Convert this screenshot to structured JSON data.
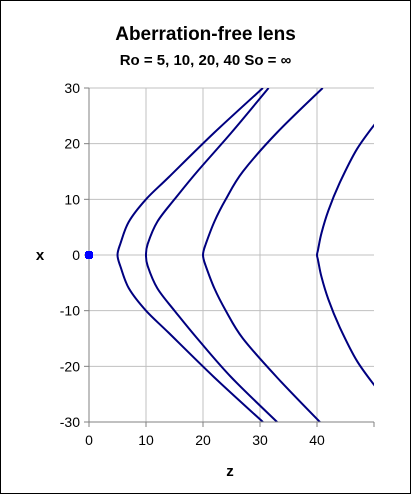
{
  "chart_data": {
    "type": "line",
    "title": "Aberration-free lens",
    "subtitle": "Ro = 5, 10, 20, 40      So = ∞",
    "xlabel": "z",
    "ylabel": "x",
    "xlim": [
      0,
      50
    ],
    "ylim": [
      -30,
      30
    ],
    "x_ticks": [
      0,
      10,
      20,
      30,
      40
    ],
    "y_ticks": [
      30,
      20,
      10,
      0,
      -10,
      -20,
      -30
    ],
    "grid": true,
    "legend": "none",
    "colors": {
      "series": "#000080",
      "marker": "#0000ff",
      "grid": "#c0c0c0",
      "axis": "#808080"
    },
    "series": [
      {
        "x": [
          30.5,
          22,
          14,
          10,
          7,
          5.5,
          5,
          5.5,
          7,
          10,
          14,
          22,
          30.5
        ],
        "y": [
          -30,
          -22,
          -14,
          -10,
          -6,
          -2,
          0,
          2,
          6,
          10,
          14,
          22,
          30
        ]
      },
      {
        "x": [
          33,
          25,
          19,
          15,
          12,
          10.3,
          10,
          10.3,
          12,
          15,
          19,
          25,
          31.5
        ],
        "y": [
          -30,
          -22,
          -15,
          -10,
          -6,
          -2,
          0,
          2,
          6,
          10,
          15,
          22,
          30
        ]
      },
      {
        "x": [
          40.5,
          33,
          27,
          24,
          22,
          20.5,
          20,
          20.5,
          22,
          24,
          27,
          33,
          41
        ],
        "y": [
          -30,
          -22,
          -15,
          -10,
          -6,
          -2,
          0,
          2,
          6,
          10,
          15,
          22,
          30
        ]
      },
      {
        "x": [
          50.5,
          47,
          44,
          42,
          40.8,
          40.2,
          40,
          40.2,
          40.8,
          42,
          44,
          47,
          50.5
        ],
        "y": [
          -24,
          -19,
          -13,
          -8,
          -4,
          -1,
          0,
          1,
          4,
          8,
          13,
          19,
          24
        ]
      }
    ],
    "points": [
      {
        "x": 0,
        "y": 0
      }
    ]
  }
}
